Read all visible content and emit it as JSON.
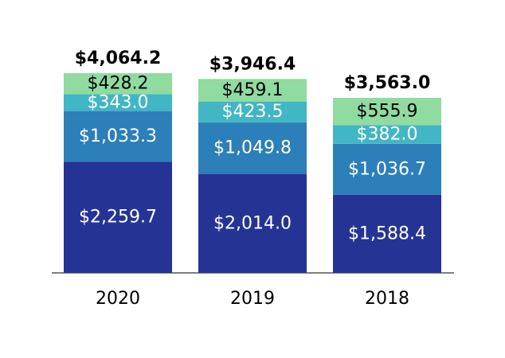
{
  "chart_data": {
    "type": "bar",
    "stacked": true,
    "categories": [
      "2020",
      "2019",
      "2018"
    ],
    "series": [
      {
        "values": [
          2259.7,
          2014.0,
          1588.4
        ],
        "labels": [
          "$2,259.7",
          "$2,014.0",
          "$1,588.4"
        ],
        "color": "#253494",
        "label_color": "#ffffff"
      },
      {
        "values": [
          1033.3,
          1049.8,
          1036.7
        ],
        "labels": [
          "$1,033.3",
          "$1,049.8",
          "$1,036.7"
        ],
        "color": "#2c7fb8",
        "label_color": "#ffffff"
      },
      {
        "values": [
          343.0,
          423.5,
          382.0
        ],
        "labels": [
          "$343.0",
          "$423.5",
          "$382.0"
        ],
        "color": "#41b6c4",
        "label_color": "#ffffff"
      },
      {
        "values": [
          428.2,
          459.1,
          555.9
        ],
        "labels": [
          "$428.2",
          "$459.1",
          "$555.9"
        ],
        "color": "#8fdba0",
        "label_color": "#000000"
      }
    ],
    "totals": [
      4064.2,
      3946.4,
      3563.0
    ],
    "total_labels": [
      "$4,064.2",
      "$3,946.4",
      "$3,563.0"
    ],
    "ylim": [
      0,
      4064.2
    ],
    "grid": false,
    "legend": "none",
    "axis_color": "#808080"
  }
}
